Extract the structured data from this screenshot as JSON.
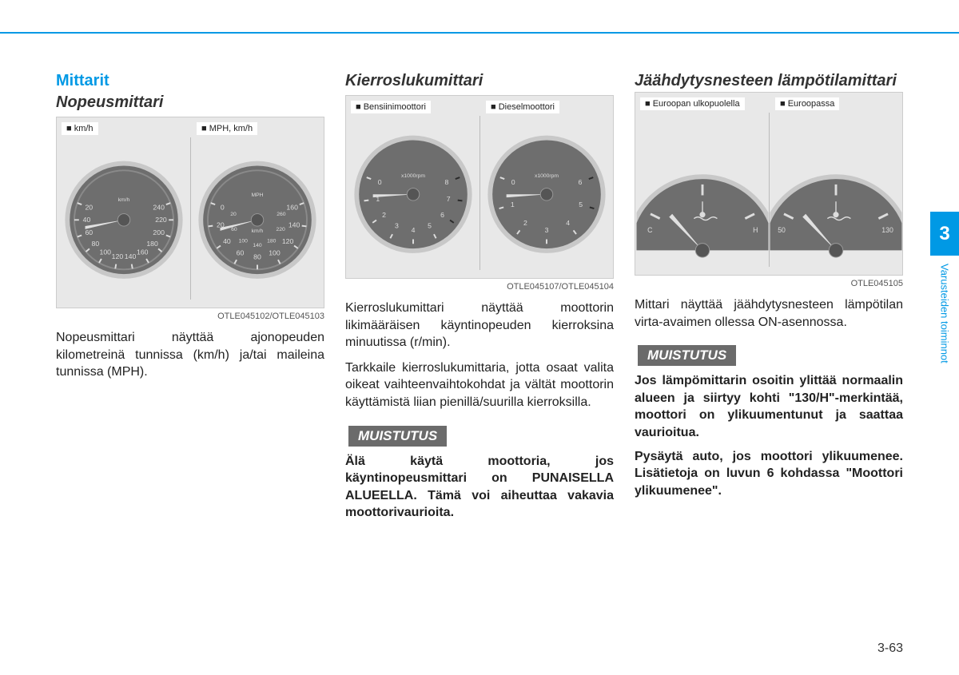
{
  "header": {
    "accent_color": "#0099e5"
  },
  "page_number": "3-63",
  "side_tab": {
    "chapter": "3",
    "label": "Varusteiden toiminnot"
  },
  "section_title": "Mittarit",
  "columns": {
    "speedo": {
      "heading": "Nopeusmittari",
      "labels": {
        "left": "■ km/h",
        "right": "■ MPH, km/h"
      },
      "caption": "OTLE045102/OTLE045103",
      "gauge_left": {
        "unit": "km/h",
        "ticks": [
          "20",
          "40",
          "60",
          "80",
          "100",
          "120",
          "140",
          "160",
          "180",
          "200",
          "220",
          "240"
        ],
        "face": "#6e6e6e",
        "rim": "#c8c8c8",
        "needle": "#e0e0e0"
      },
      "gauge_right": {
        "unit_top": "MPH",
        "unit_inner": "km/h",
        "outer": [
          "0",
          "20",
          "40",
          "60",
          "80",
          "100",
          "120",
          "140",
          "160"
        ],
        "inner": [
          "20",
          "60",
          "100",
          "140",
          "180",
          "220",
          "260"
        ],
        "face": "#6e6e6e",
        "rim": "#c8c8c8",
        "needle": "#e0e0e0"
      },
      "text": "Nopeusmittari näyttää ajonopeuden kilometreinä tunnissa (km/h) ja/tai maileina tunnissa (MPH)."
    },
    "tacho": {
      "heading": "Kierroslukumittari",
      "labels": {
        "left": "■ Bensiinimoottori",
        "right": "■ Dieselmoottori"
      },
      "caption": "OTLE045107/OTLE045104",
      "gauge_left": {
        "unit": "x1000rpm",
        "ticks": [
          "0",
          "1",
          "2",
          "3",
          "4",
          "5",
          "6",
          "7",
          "8"
        ],
        "redline_from": 6,
        "face": "#6e6e6e",
        "rim": "#c8c8c8"
      },
      "gauge_right": {
        "unit": "x1000rpm",
        "ticks": [
          "0",
          "1",
          "2",
          "3",
          "4",
          "5",
          "6"
        ],
        "redline_from": 4.5,
        "face": "#6e6e6e",
        "rim": "#c8c8c8"
      },
      "text1": "Kierroslukumittari näyttää moottorin likimääräisen käyntinopeuden kierroksina minuutissa (r/min).",
      "text2": "Tarkkaile kierroslukumittaria, jotta osaat valita oikeat vaihteenvaihtokohdat ja vältät moottorin käyttämistä liian pienillä/suurilla kierroksilla.",
      "notice_label": "MUISTUTUS",
      "notice_text": "Älä käytä moottoria, jos käyntinopeusmittari on PUNAISELLA ALUEELLA. Tämä voi aiheuttaa vakavia moottorivaurioita."
    },
    "temp": {
      "heading": "Jäähdytysnesteen lämpötilamittari",
      "labels": {
        "left": "■ Euroopan ulkopuolella",
        "right": "■ Euroopassa"
      },
      "caption": "OTLE045105",
      "gauge_left": {
        "left_mark": "C",
        "right_mark": "H",
        "face": "#6e6e6e"
      },
      "gauge_right": {
        "left_mark": "50",
        "right_mark": "130",
        "face": "#6e6e6e"
      },
      "text": "Mittari näyttää jäähdytysnesteen lämpötilan virta-avaimen ollessa ON-asennossa.",
      "notice_label": "MUISTUTUS",
      "notice_text1": "Jos lämpömittarin osoitin ylittää normaalin alueen ja siirtyy kohti \"130/H\"-merkintää, moottori on ylikuumentunut ja saattaa vaurioitua.",
      "notice_text2": "Pysäytä auto, jos moottori ylikuumenee. Lisätietoja on luvun 6 kohdassa \"Moottori ylikuumenee\"."
    }
  }
}
